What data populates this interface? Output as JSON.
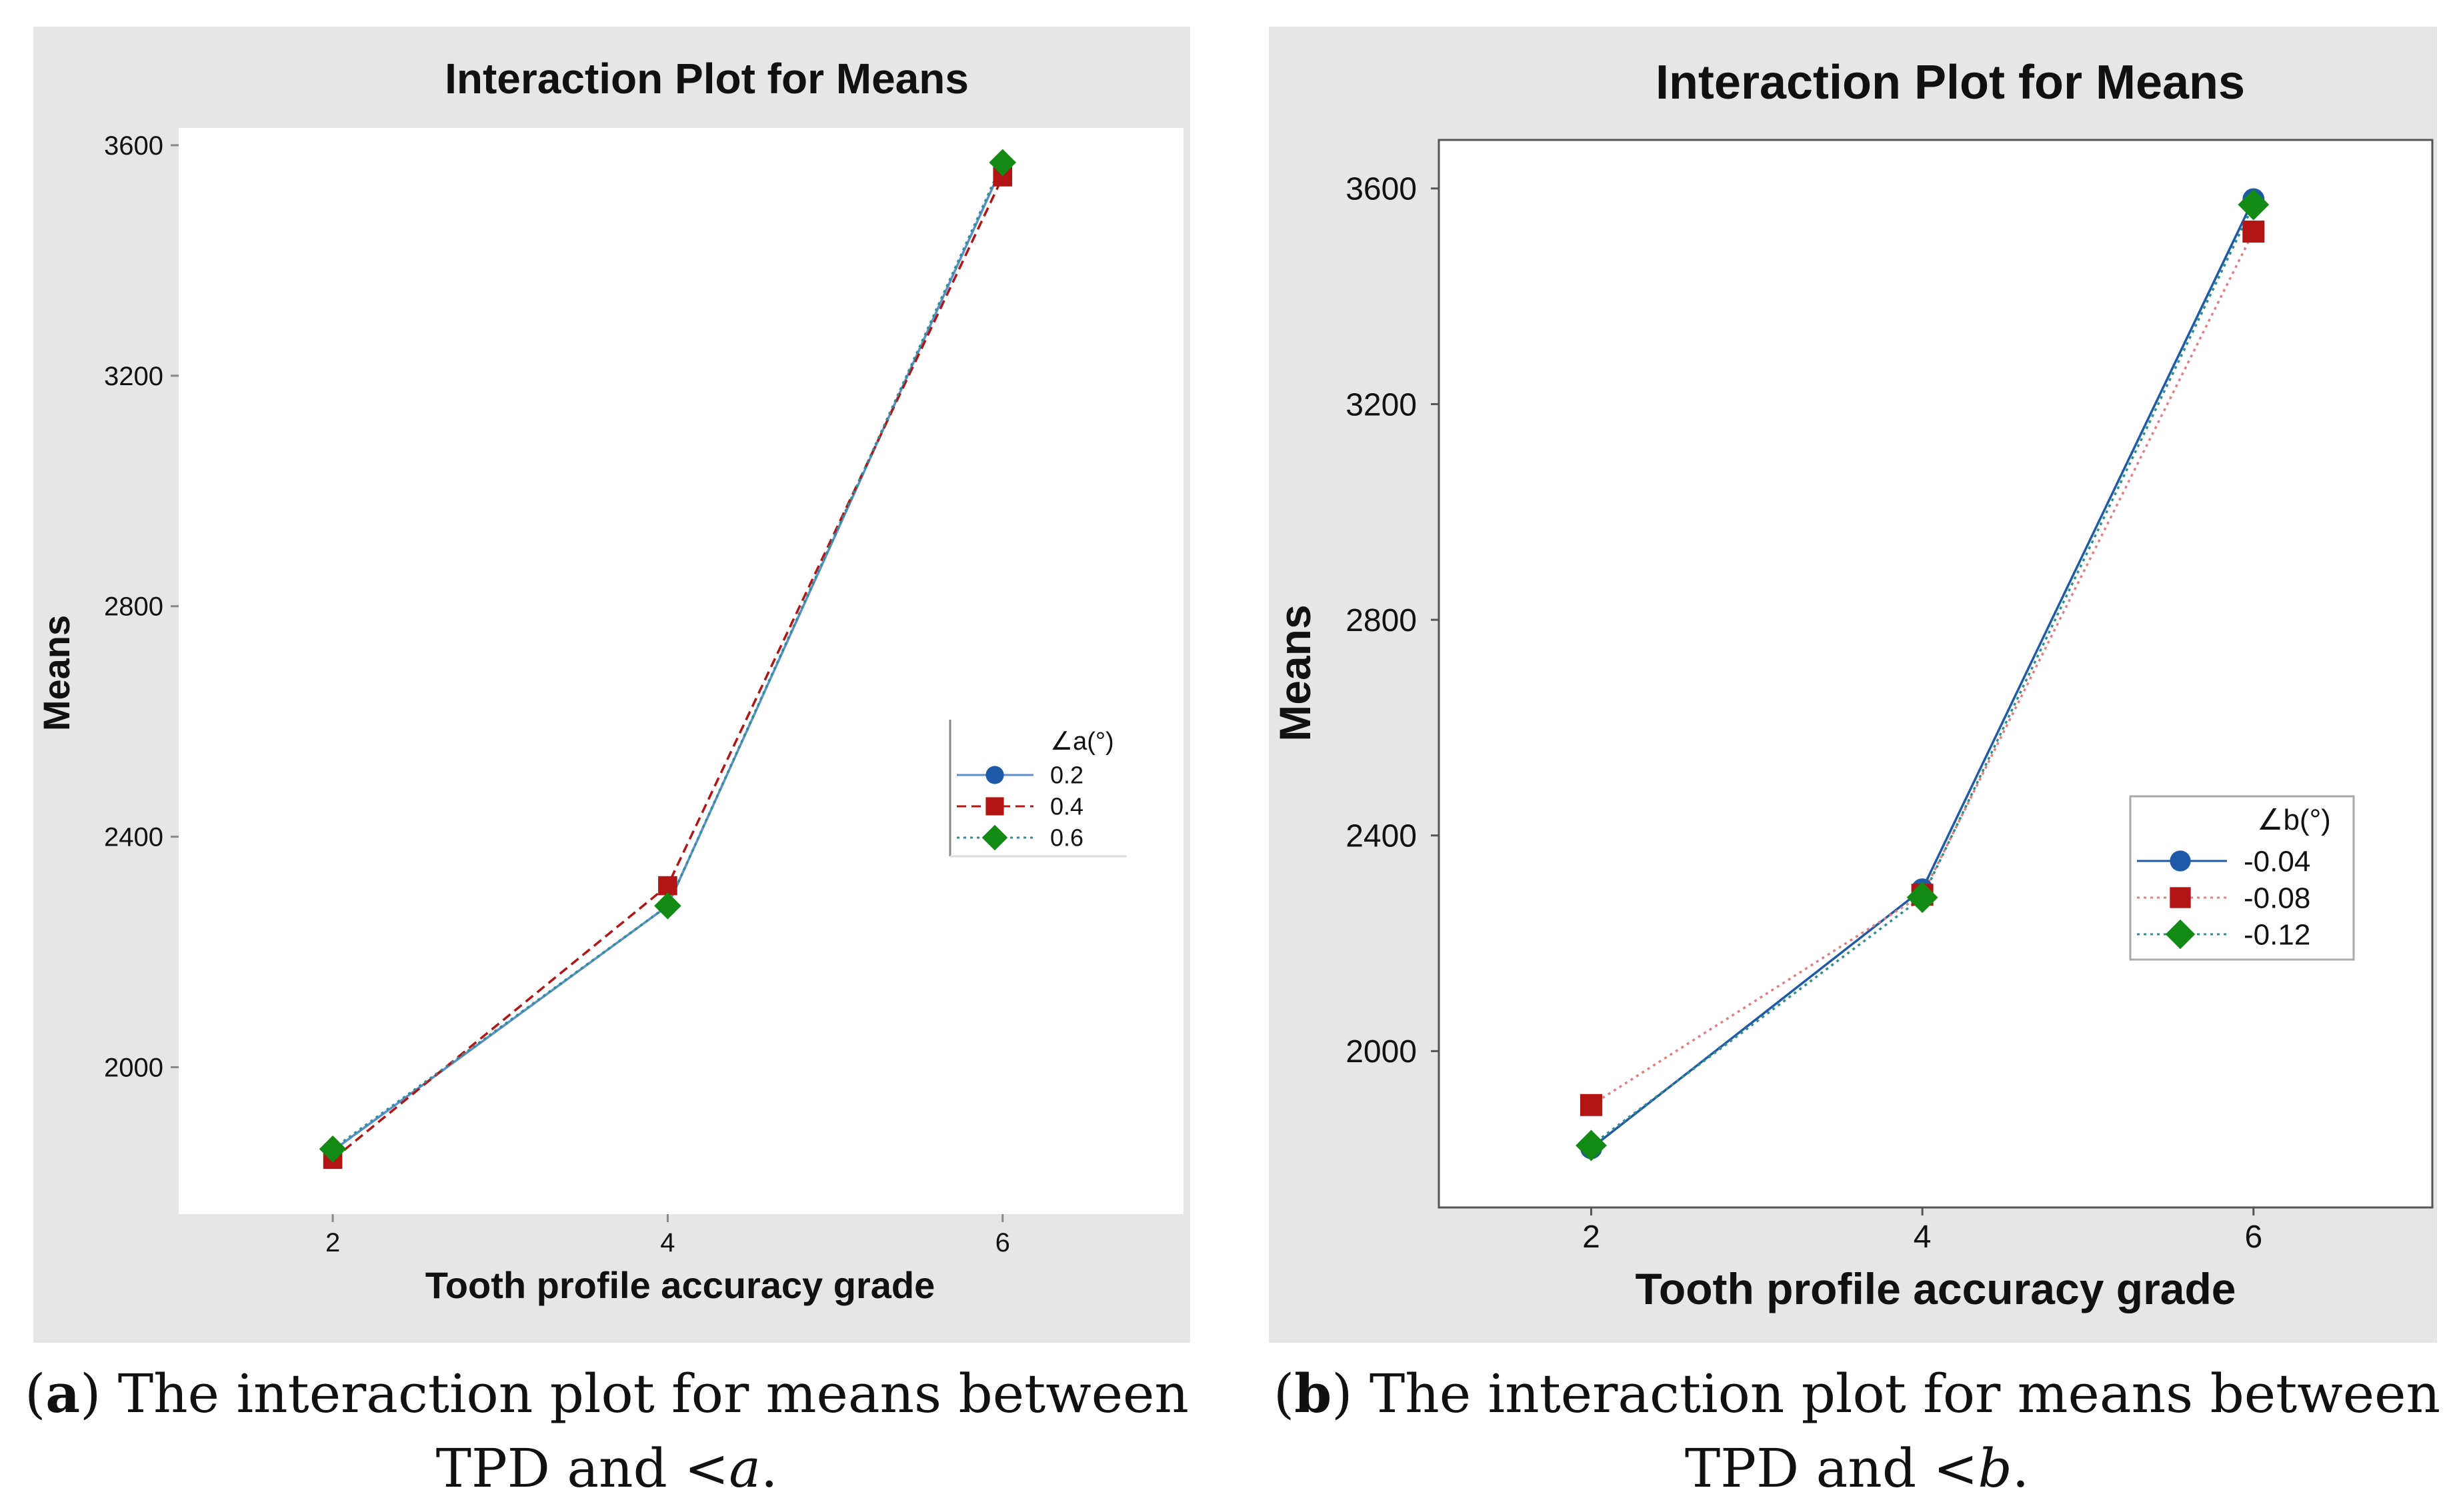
{
  "figures": [
    {
      "caption": {
        "letter": "a",
        "text": " The interaction plot for means between TPD and <",
        "variable": "a",
        "end": "."
      }
    },
    {
      "caption": {
        "letter": "b",
        "text": " The interaction plot for means between TPD and <",
        "variable": "b",
        "end": "."
      }
    }
  ],
  "colors": {
    "panel_bg": "#e6e6e6",
    "plot_bg": "#ffffff",
    "series_blue": "#1f5aa8",
    "series_red": "#b31515",
    "series_green": "#138a13",
    "line_teal": "#2e8f8f"
  },
  "chart_data": [
    {
      "type": "line",
      "title": "Interaction Plot for Means",
      "xlabel": "Tooth profile accuracy grade",
      "ylabel": "Means",
      "x": [
        2,
        4,
        6
      ],
      "x_ticks": [
        "2",
        "4",
        "6"
      ],
      "y_ticks": [
        2000,
        2400,
        2800,
        3200,
        3600
      ],
      "ylim": [
        1745,
        3630
      ],
      "xlim": [
        1.08,
        7.08
      ],
      "legend_title": "∠a(°)",
      "legend_position": "right",
      "series": [
        {
          "name": "0.2",
          "values": [
            1855,
            2280,
            3565
          ],
          "marker": "circle",
          "color": "#1f5aa8",
          "line_color": "#5b8fd0",
          "dash": "solid"
        },
        {
          "name": "0.4",
          "values": [
            1840,
            2315,
            3545
          ],
          "marker": "square",
          "color": "#b31515",
          "line_color": "#b31515",
          "dash": "dashed"
        },
        {
          "name": "0.6",
          "values": [
            1858,
            2280,
            3570
          ],
          "marker": "diamond",
          "color": "#138a13",
          "line_color": "#2e8f8f",
          "dash": "dotted"
        }
      ]
    },
    {
      "type": "line",
      "title": "Interaction Plot for Means",
      "xlabel": "Tooth profile accuracy grade",
      "ylabel": "Means",
      "x": [
        2,
        4,
        6
      ],
      "x_ticks": [
        "2",
        "4",
        "6"
      ],
      "y_ticks": [
        2000,
        2400,
        2800,
        3200,
        3600
      ],
      "ylim": [
        1710,
        3690
      ],
      "xlim": [
        1.08,
        7.08
      ],
      "legend_title": "∠b(°)",
      "legend_position": "right",
      "series": [
        {
          "name": "-0.04",
          "values": [
            1820,
            2300,
            3580
          ],
          "marker": "circle",
          "color": "#1f5aa8",
          "line_color": "#1f5aa8",
          "dash": "solid"
        },
        {
          "name": "-0.08",
          "values": [
            1900,
            2290,
            3520
          ],
          "marker": "square",
          "color": "#b31515",
          "line_color": "#e08080",
          "dash": "dotted"
        },
        {
          "name": "-0.12",
          "values": [
            1825,
            2285,
            3570
          ],
          "marker": "diamond",
          "color": "#138a13",
          "line_color": "#2e8f8f",
          "dash": "dotted"
        }
      ]
    }
  ]
}
